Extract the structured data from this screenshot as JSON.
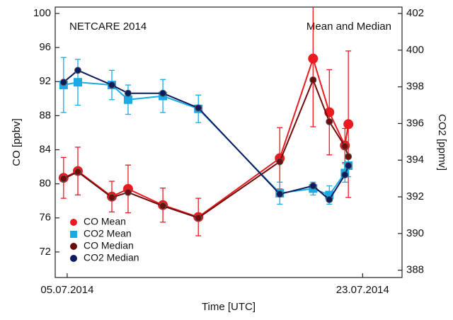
{
  "chart_data": {
    "type": "line",
    "annotations": [
      "NETCARE 2014",
      "Mean and Median"
    ],
    "xlabel": "Time [UTC]",
    "ylabel": "CO [ppbv]",
    "y2label": "CO2 [ppmv]",
    "x": [
      4.78,
      5.65,
      7.72,
      8.71,
      10.83,
      12.99,
      17.95,
      19.98,
      20.97,
      21.92,
      22.13
    ],
    "xlim": [
      4.27,
      25.4
    ],
    "xticks": [
      {
        "value": 5,
        "label": "05.07.2014"
      },
      {
        "value": 23,
        "label": "23.07.2014"
      }
    ],
    "ylim": [
      69,
      100.75
    ],
    "yticks": [
      72,
      76,
      80,
      84,
      88,
      92,
      96,
      100
    ],
    "y2lim": [
      387.6,
      402.35
    ],
    "y2ticks": [
      388,
      390,
      392,
      394,
      396,
      398,
      400,
      402
    ],
    "legend": "lower left",
    "series": [
      {
        "name": "CO Mean",
        "color": "#ea1a1f",
        "marker": "circle",
        "axis": "y",
        "values": [
          80.7,
          81.5,
          78.5,
          79.4,
          77.5,
          76.1,
          83.0,
          94.7,
          88.4,
          84.5,
          87.0
        ],
        "errors": [
          2.4,
          2.8,
          1.8,
          2.8,
          2.0,
          2.2,
          3.6,
          8.0,
          5.0,
          2.0,
          8.6
        ]
      },
      {
        "name": "CO2 Mean",
        "color": "#1aaae6",
        "marker": "square",
        "axis": "y2",
        "values": [
          398.1,
          398.25,
          398.1,
          397.3,
          397.5,
          396.8,
          392.2,
          392.45,
          392.1,
          393.3,
          393.7
        ],
        "errors": [
          1.5,
          1.25,
          0.8,
          0.8,
          0.9,
          0.75,
          0.6,
          0.35,
          0.5,
          0.5,
          0.6
        ]
      },
      {
        "name": "CO Median",
        "color": "#6e0b0b",
        "marker": "circle",
        "axis": "y",
        "values": [
          80.6,
          81.4,
          78.4,
          79.0,
          77.4,
          76.0,
          82.6,
          92.2,
          87.3,
          84.4,
          83.2
        ]
      },
      {
        "name": "CO2 Median",
        "color": "#0c1b5e",
        "marker": "circle",
        "axis": "y2",
        "values": [
          398.25,
          398.9,
          398.1,
          397.65,
          397.65,
          396.85,
          392.15,
          392.6,
          391.85,
          393.2,
          393.7
        ]
      }
    ]
  }
}
